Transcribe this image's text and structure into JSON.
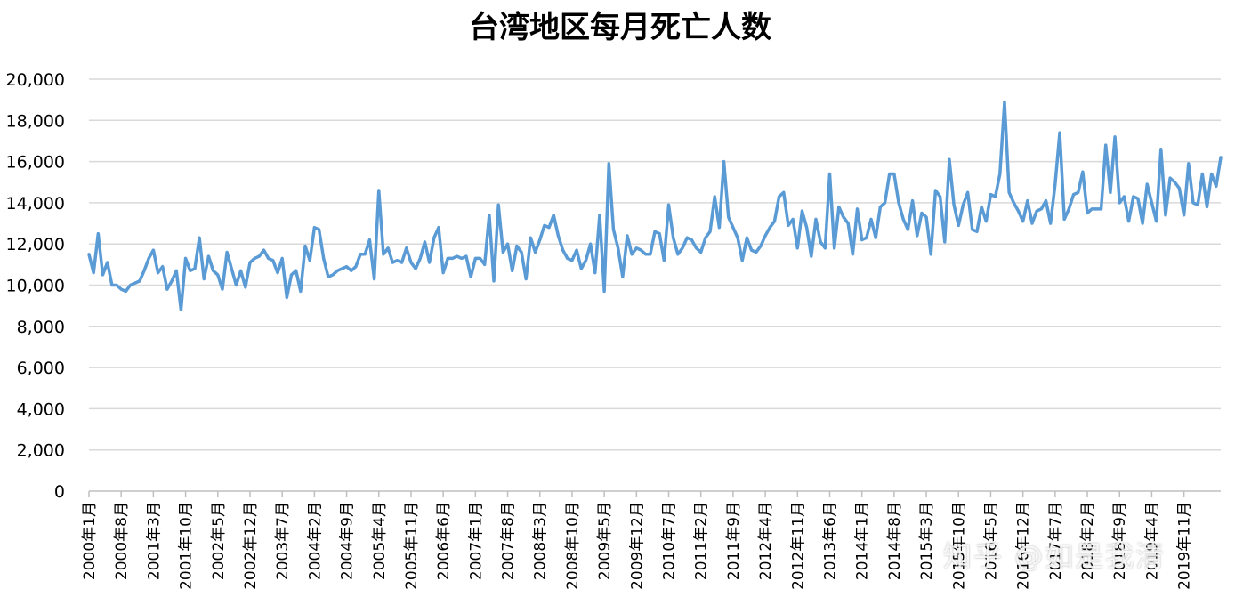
{
  "chart_data": {
    "type": "line",
    "title": "台湾地区每月死亡人数",
    "xlabel": "",
    "ylabel": "",
    "ylim": [
      0,
      20000
    ],
    "yticks": [
      "0",
      "2,000",
      "4,000",
      "6,000",
      "8,000",
      "10,000",
      "12,000",
      "14,000",
      "16,000",
      "18,000",
      "20,000"
    ],
    "xtick_labels": [
      "2000年1月",
      "2000年8月",
      "2001年3月",
      "2001年10月",
      "2002年5月",
      "2002年12月",
      "2003年7月",
      "2004年2月",
      "2004年9月",
      "2005年4月",
      "2005年11月",
      "2006年6月",
      "2007年1月",
      "2007年8月",
      "2008年3月",
      "2008年10月",
      "2009年5月",
      "2009年12月",
      "2010年7月",
      "2011年2月",
      "2011年9月",
      "2012年4月",
      "2012年11月",
      "2013年6月",
      "2014年1月",
      "2014年8月",
      "2015年3月",
      "2015年10月",
      "2016年5月",
      "2016年12月",
      "2017年7月",
      "2018年2月",
      "2018年9月",
      "2019年4月",
      "2019年11月"
    ],
    "grid": true,
    "legend": "none",
    "series": [
      {
        "color": "#5B9BD5",
        "values": [
          11500,
          10600,
          12500,
          10500,
          11100,
          10000,
          10000,
          9800,
          9700,
          10000,
          10100,
          10200,
          10700,
          11300,
          11700,
          10600,
          10900,
          9800,
          10200,
          10700,
          8800,
          11300,
          10700,
          10800,
          12300,
          10300,
          11400,
          10700,
          10500,
          9800,
          11600,
          10800,
          10000,
          10700,
          9900,
          11100,
          11300,
          11400,
          11700,
          11300,
          11200,
          10600,
          11300,
          9400,
          10500,
          10700,
          9700,
          11900,
          11200,
          12800,
          12700,
          11300,
          10400,
          10500,
          10700,
          10800,
          10900,
          10700,
          10900,
          11500,
          11500,
          12200,
          10300,
          14600,
          11500,
          11800,
          11100,
          11200,
          11100,
          11800,
          11100,
          10800,
          11300,
          12100,
          11100,
          12300,
          12800,
          10600,
          11300,
          11300,
          11400,
          11300,
          11400,
          10400,
          11300,
          11300,
          11000,
          13400,
          10200,
          13900,
          11600,
          12000,
          10700,
          11900,
          11600,
          10300,
          12300,
          11600,
          12200,
          12900,
          12800,
          13400,
          12400,
          11700,
          11300,
          11200,
          11700,
          10800,
          11200,
          12000,
          10600,
          13400,
          9700,
          15900,
          12700,
          11800,
          10400,
          12400,
          11500,
          11800,
          11700,
          11500,
          11500,
          12600,
          12500,
          11200,
          13900,
          12300,
          11500,
          11800,
          12300,
          12200,
          11800,
          11600,
          12300,
          12600,
          14300,
          12800,
          16000,
          13300,
          12800,
          12300,
          11200,
          12300,
          11700,
          11600,
          11900,
          12400,
          12800,
          13100,
          14300,
          14500,
          12900,
          13200,
          11800,
          13600,
          12800,
          11400,
          13200,
          12100,
          11800,
          15400,
          11800,
          13800,
          13300,
          13000,
          11500,
          13700,
          12200,
          12300,
          13200,
          12300,
          13800,
          14000,
          15400,
          15400,
          14000,
          13200,
          12700,
          14100,
          12400,
          13500,
          13300,
          11500,
          14600,
          14300,
          12100,
          16100,
          13900,
          12900,
          13900,
          14500,
          12700,
          12600,
          13800,
          13100,
          14400,
          14300,
          15400,
          18900,
          14500,
          14000,
          13600,
          13100,
          14100,
          13000,
          13600,
          13700,
          14100,
          13000,
          14900,
          17400,
          13200,
          13700,
          14400,
          14500,
          15500,
          13500,
          13700,
          13700,
          13700,
          16800,
          14500,
          17200,
          14000,
          14300,
          13100,
          14300,
          14200,
          13000,
          14900,
          14000,
          13100,
          16600,
          13400,
          15200,
          15000,
          14700,
          13400,
          15900,
          14000,
          13900,
          15400,
          13800,
          15400,
          14800,
          16200
        ]
      }
    ]
  },
  "watermark": "知乎 @如是我清"
}
